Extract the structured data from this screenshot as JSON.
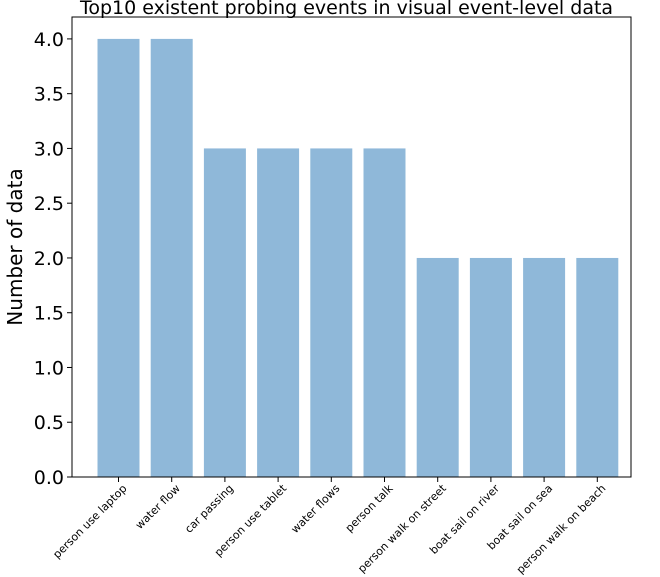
{
  "chart_data": {
    "type": "bar",
    "title": "Top10 existent probing events in visual event-level data",
    "xlabel": "",
    "ylabel": "Number of data",
    "ylim": [
      0,
      4.2
    ],
    "yticks": [
      0.0,
      0.5,
      1.0,
      1.5,
      2.0,
      2.5,
      3.0,
      3.5,
      4.0
    ],
    "ytick_labels": [
      "0.0",
      "0.5",
      "1.0",
      "1.5",
      "2.0",
      "2.5",
      "3.0",
      "3.5",
      "4.0"
    ],
    "categories": [
      "person use laptop",
      "water flow",
      "car passing",
      "person use tablet",
      "water flows",
      "person talk",
      "person walk on street",
      "boat sail on river",
      "boat sail on sea",
      "person walk on beach"
    ],
    "values": [
      4,
      4,
      3,
      3,
      3,
      3,
      2,
      2,
      2,
      2
    ],
    "bar_color": "#8fb8d9",
    "grid": false
  }
}
